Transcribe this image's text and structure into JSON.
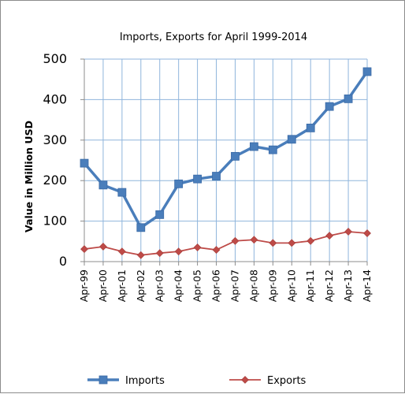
{
  "chart_data": {
    "type": "line",
    "title": "Imports, Exports for April 1999-2014",
    "xlabel": "",
    "ylabel": "Value in  Million  USD",
    "ylim": [
      0,
      500
    ],
    "yticks": [
      0,
      100,
      200,
      300,
      400,
      500
    ],
    "grid": "vertical and horizontal",
    "legend_position": "bottom",
    "categories": [
      "Apr-99",
      "Apr-00",
      "Apr-01",
      "Apr-02",
      "Apr-03",
      "Apr-04",
      "Apr-05",
      "Apr-06",
      "Apr-07",
      "Apr-08",
      "Apr-09",
      "Apr-10",
      "Apr-11",
      "Apr-12",
      "Apr-13",
      "Apr-14"
    ],
    "series": [
      {
        "name": "Imports",
        "color": "#4a7ebb",
        "marker": "square",
        "values": [
          243,
          189,
          171,
          84,
          116,
          192,
          204,
          211,
          260,
          284,
          276,
          302,
          330,
          383,
          402,
          469
        ]
      },
      {
        "name": "Exports",
        "color": "#be4b48",
        "marker": "diamond",
        "values": [
          31,
          37,
          25,
          16,
          21,
          25,
          35,
          29,
          51,
          54,
          46,
          46,
          51,
          64,
          74,
          70
        ]
      }
    ]
  }
}
